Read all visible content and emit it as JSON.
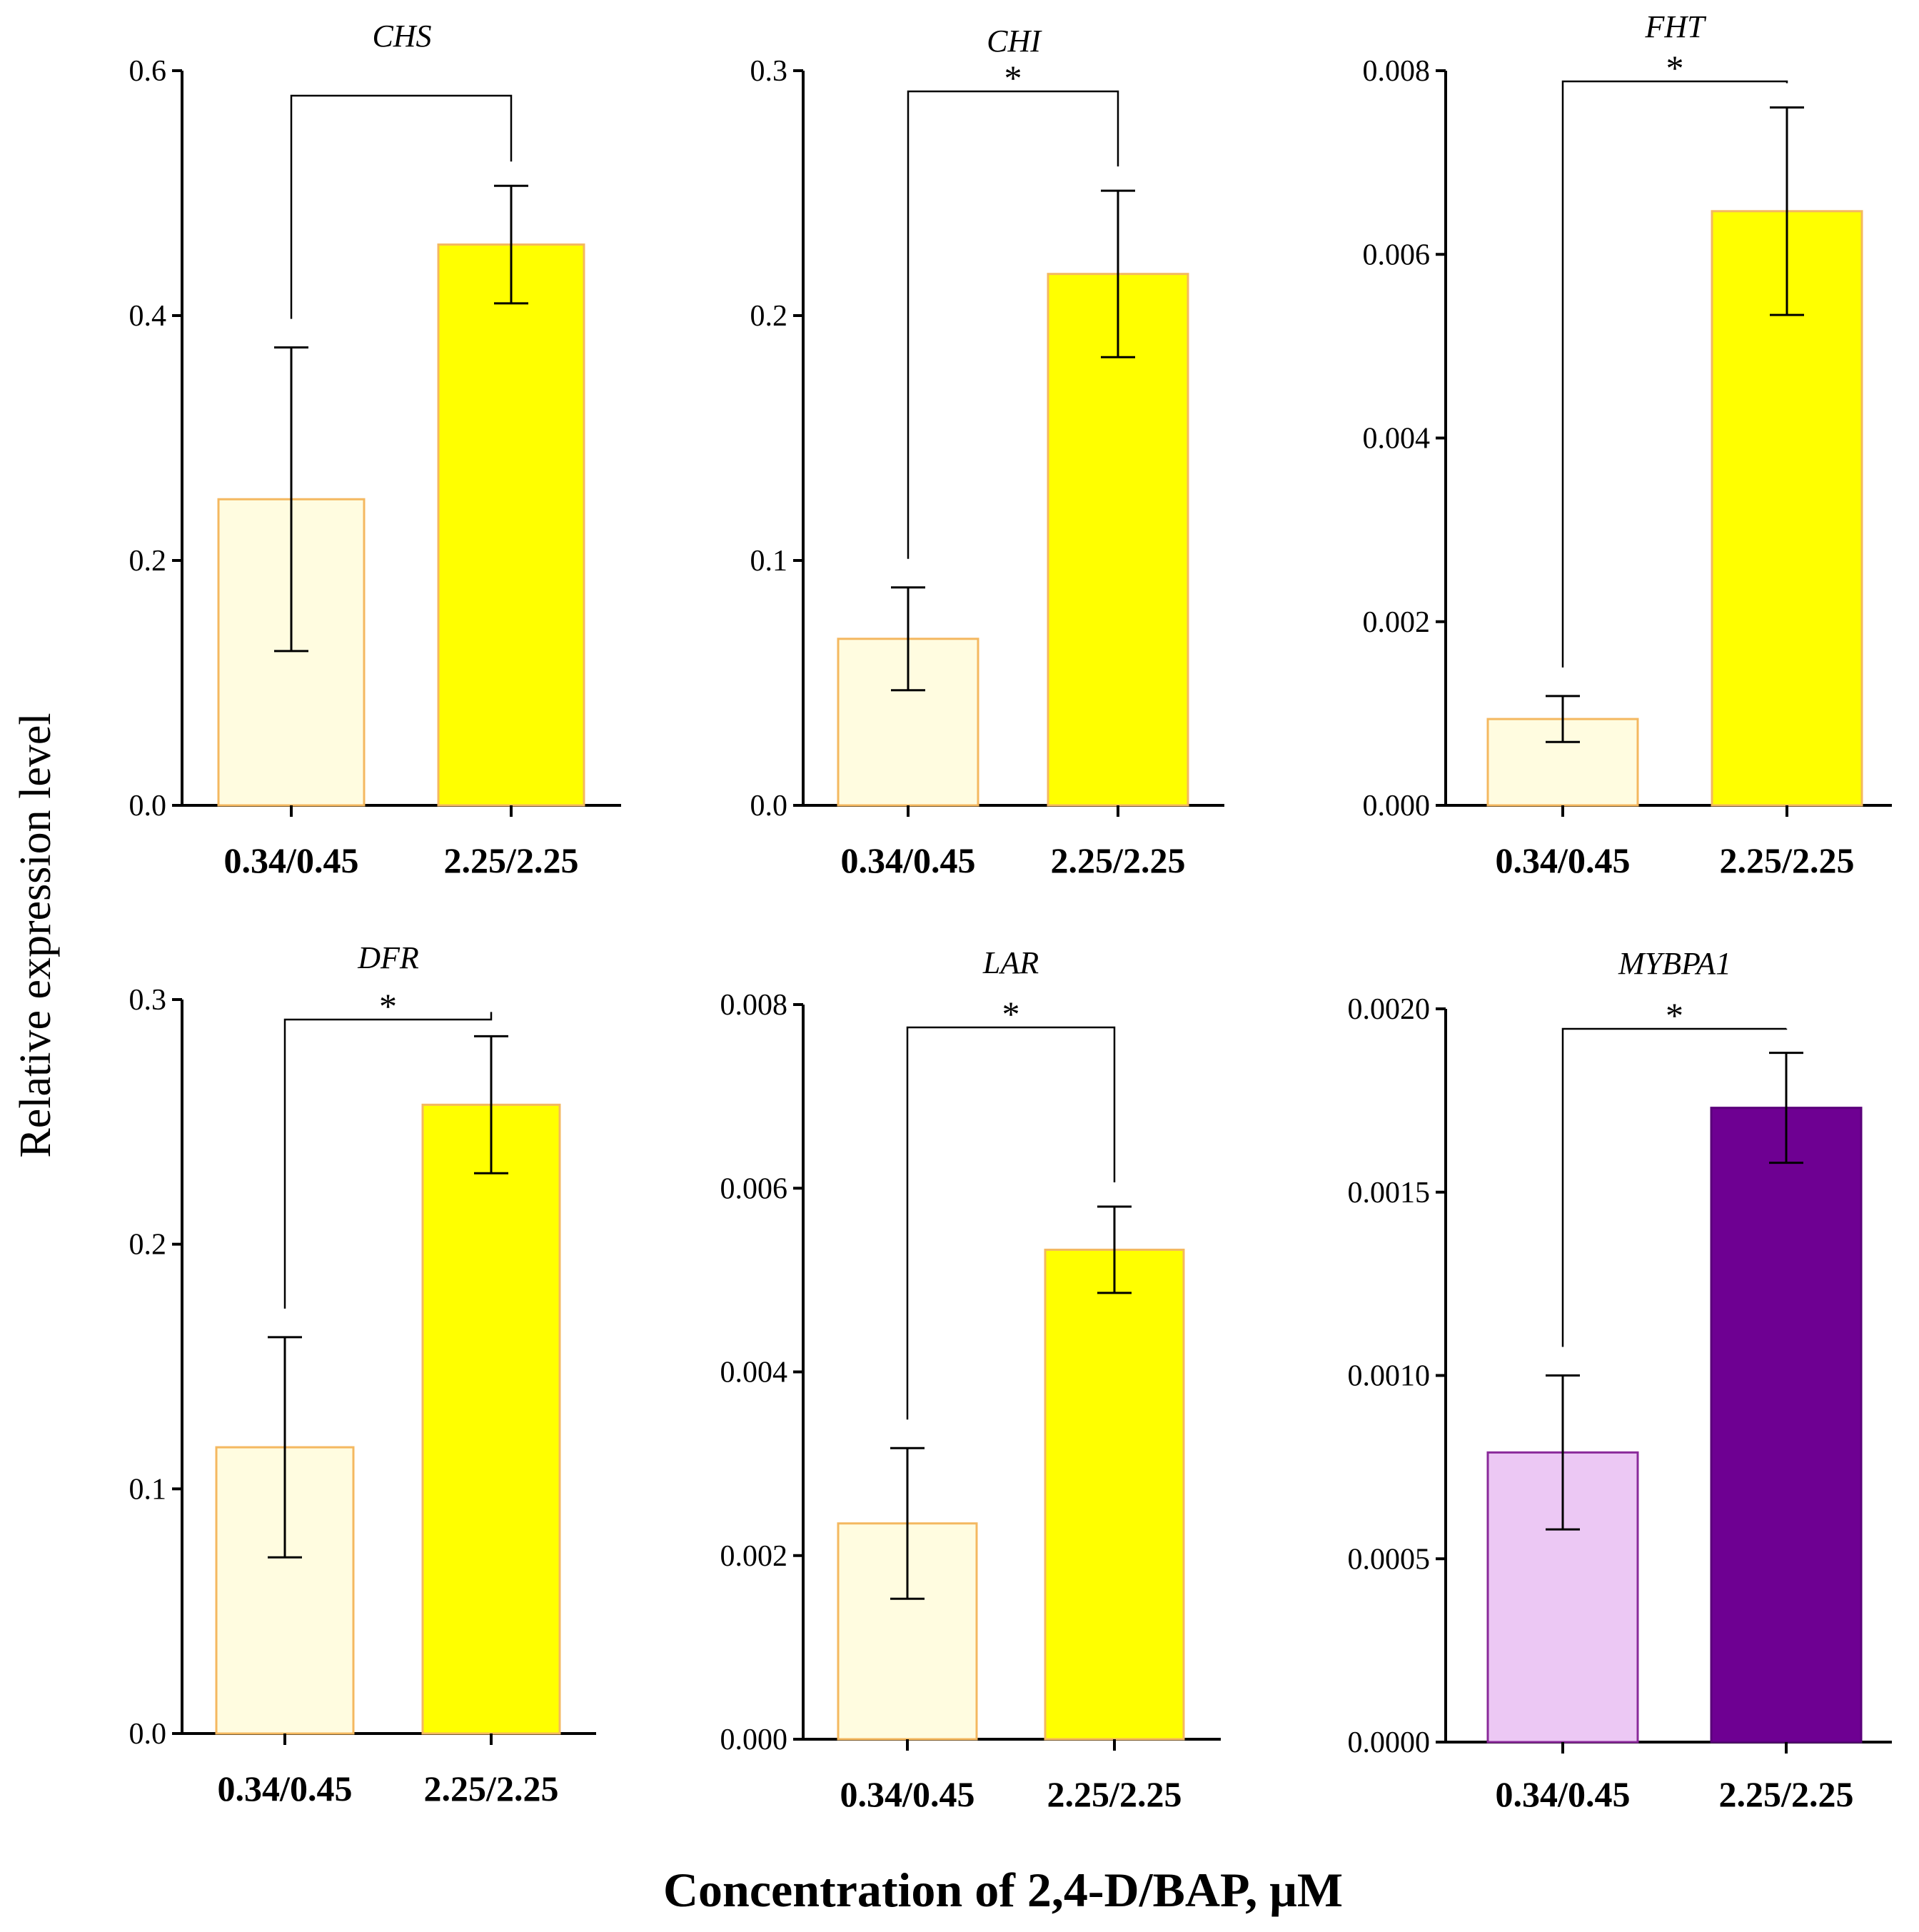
{
  "figure": {
    "ylabel": "Relative expression level",
    "xlabel": "Concentration of 2,4-D/BAP, μM"
  },
  "chart_data": [
    {
      "type": "bar",
      "title": "CHS",
      "categories": [
        "0.34/0.45",
        "2.25/2.25"
      ],
      "values": [
        0.25,
        0.458
      ],
      "errors": [
        0.124,
        0.048
      ],
      "ylim": [
        0,
        0.6
      ],
      "yticks": [
        "0.0",
        "0.2",
        "0.4",
        "0.6"
      ],
      "significance": "",
      "colors": [
        "#fffce0",
        "#ffff00"
      ],
      "edge": [
        "#f4b860",
        "#f4b860"
      ]
    },
    {
      "type": "bar",
      "title": "CHI",
      "categories": [
        "0.34/0.45",
        "2.25/2.25"
      ],
      "values": [
        0.068,
        0.217
      ],
      "errors": [
        0.021,
        0.034
      ],
      "ylim": [
        0,
        0.3
      ],
      "yticks": [
        "0.0",
        "0.1",
        "0.2",
        "0.3"
      ],
      "significance": "*",
      "colors": [
        "#fffce0",
        "#ffff00"
      ],
      "edge": [
        "#f4b860",
        "#f4b860"
      ]
    },
    {
      "type": "bar",
      "title": "FHT",
      "categories": [
        "0.34/0.45",
        "2.25/2.25"
      ],
      "values": [
        0.00094,
        0.00647
      ],
      "errors": [
        0.00025,
        0.00113
      ],
      "ylim": [
        0,
        0.008
      ],
      "yticks": [
        "0.000",
        "0.002",
        "0.004",
        "0.006",
        "0.008"
      ],
      "significance": "*",
      "colors": [
        "#fffce0",
        "#ffff00"
      ],
      "edge": [
        "#f4b860",
        "#f4b860"
      ]
    },
    {
      "type": "bar",
      "title": "DFR",
      "categories": [
        "0.34/0.45",
        "2.25/2.25"
      ],
      "values": [
        0.117,
        0.257
      ],
      "errors": [
        0.045,
        0.028
      ],
      "ylim": [
        0,
        0.3
      ],
      "yticks": [
        "0.0",
        "0.1",
        "0.2",
        "0.3"
      ],
      "significance": "*",
      "colors": [
        "#fffce0",
        "#ffff00"
      ],
      "edge": [
        "#f4b860",
        "#f4b860"
      ]
    },
    {
      "type": "bar",
      "title": "LAR",
      "categories": [
        "0.34/0.45",
        "2.25/2.25"
      ],
      "values": [
        0.00235,
        0.00533
      ],
      "errors": [
        0.00082,
        0.00047
      ],
      "ylim": [
        0,
        0.008
      ],
      "yticks": [
        "0.000",
        "0.002",
        "0.004",
        "0.006",
        "0.008"
      ],
      "significance": "*",
      "colors": [
        "#fffce0",
        "#ffff00"
      ],
      "edge": [
        "#f4b860",
        "#f4b860"
      ]
    },
    {
      "type": "bar",
      "title": "MYBPA1",
      "categories": [
        "0.34/0.45",
        "2.25/2.25"
      ],
      "values": [
        0.00079,
        0.00173
      ],
      "errors": [
        0.00021,
        0.00015
      ],
      "ylim": [
        0,
        0.002
      ],
      "yticks": [
        "0.0000",
        "0.0005",
        "0.0010",
        "0.0015",
        "0.0020"
      ],
      "significance": "*",
      "colors": [
        "#ecc8f4",
        "#6e0092"
      ],
      "edge": [
        "#8a2a9a",
        "#5a007a"
      ]
    }
  ]
}
